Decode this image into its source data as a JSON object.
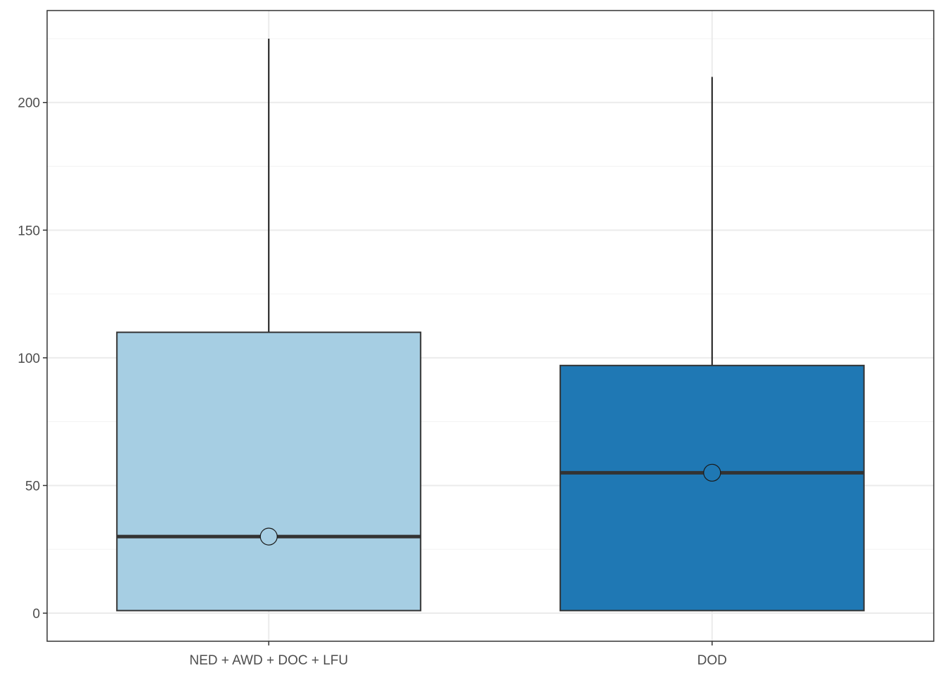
{
  "chart_data": {
    "type": "boxplot",
    "title": "",
    "xlabel": "",
    "ylabel": "",
    "ylim": [
      -11,
      236
    ],
    "y_major_ticks": [
      0,
      50,
      100,
      150,
      200
    ],
    "y_minor_ticks": [
      25,
      75,
      125,
      175,
      225
    ],
    "grid": true,
    "legend": "none",
    "categories": [
      "NED + AWD + DOC + LFU",
      "DOD"
    ],
    "boxes": [
      {
        "category": "NED + AWD + DOC + LFU",
        "min": 1,
        "q1": 1,
        "median": 30,
        "q3": 110,
        "max": 225,
        "mean": 30,
        "fill": "#a6cee3"
      },
      {
        "category": "DOD",
        "min": 1,
        "q1": 1,
        "median": 55,
        "q3": 97,
        "max": 210,
        "mean": 55,
        "fill": "#1f78b4"
      }
    ]
  },
  "colors": {
    "panel_border": "#333333",
    "grid_major": "#ebebeb",
    "grid_minor": "#f3f3f3",
    "box_outline": "#333333",
    "median_line": "#333333",
    "whisker": "#1a1a1a",
    "tick_text": "#4d4d4d"
  }
}
